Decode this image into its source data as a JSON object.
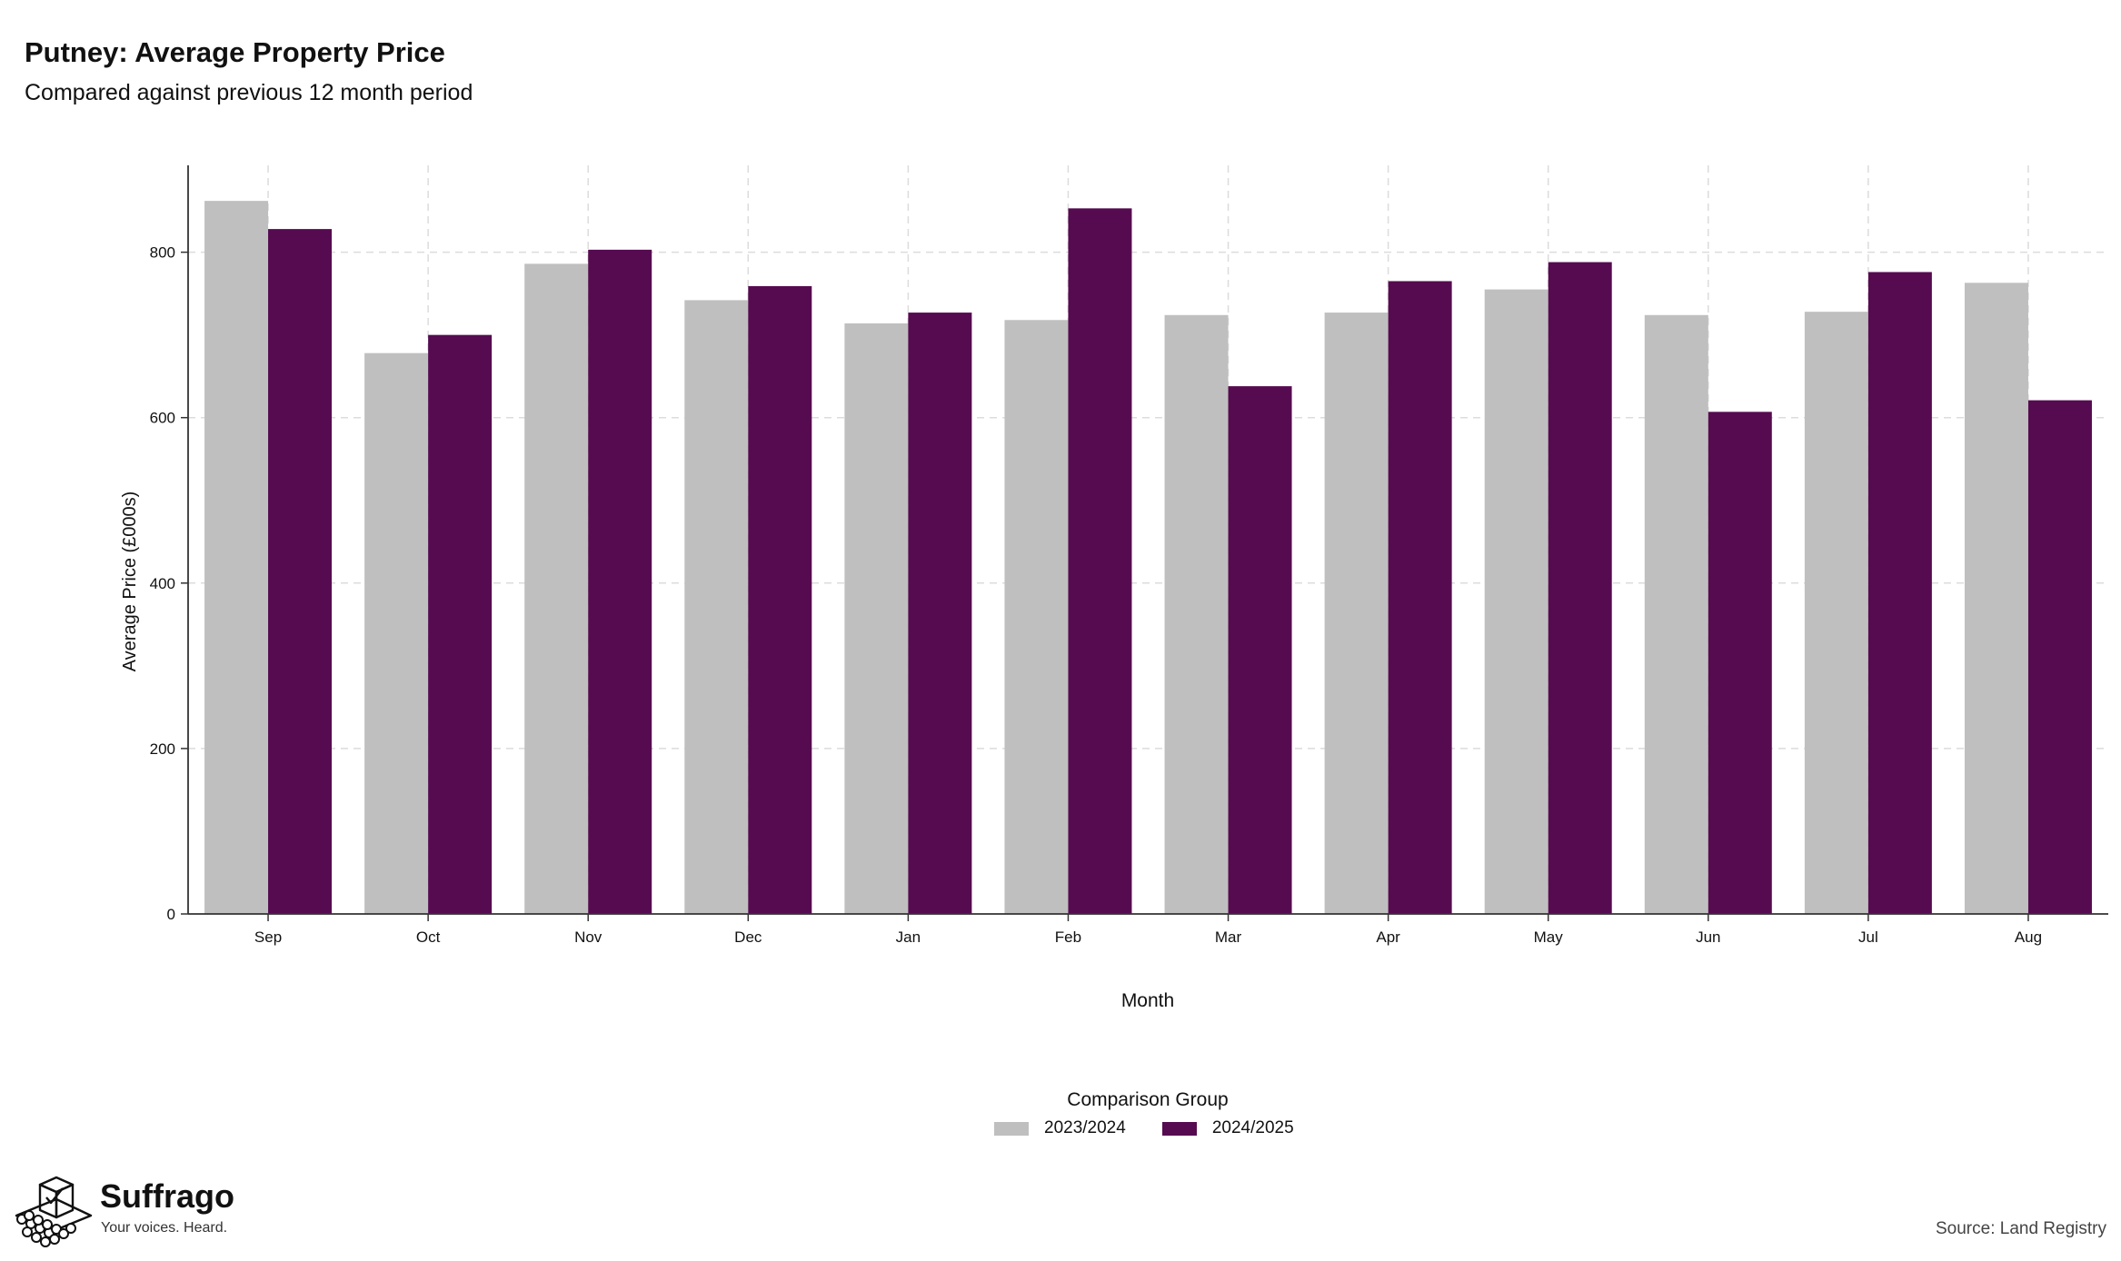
{
  "header": {
    "title": "Putney: Average Property Price",
    "subtitle": "Compared against previous 12 month period"
  },
  "chart_data": {
    "type": "bar",
    "title": "Putney: Average Property Price",
    "subtitle": "Compared against previous 12 month period",
    "xlabel": "Month",
    "ylabel": "Average Price (£000s)",
    "ylim": [
      0,
      905
    ],
    "yticks": [
      0,
      200,
      400,
      600,
      800
    ],
    "grid": true,
    "legend_title": "Comparison Group",
    "legend_position": "bottom",
    "categories": [
      "Sep",
      "Oct",
      "Nov",
      "Dec",
      "Jan",
      "Feb",
      "Mar",
      "Apr",
      "May",
      "Jun",
      "Jul",
      "Aug"
    ],
    "series": [
      {
        "name": "2023/2024",
        "color": "#bfbfbf",
        "values": [
          862,
          678,
          786,
          742,
          714,
          718,
          724,
          727,
          755,
          724,
          728,
          763
        ]
      },
      {
        "name": "2024/2025",
        "color": "#560b50",
        "values": [
          828,
          700,
          803,
          759,
          727,
          853,
          638,
          765,
          788,
          607,
          776,
          621
        ]
      }
    ]
  },
  "footer": {
    "brand_name": "Suffrago",
    "brand_tagline": "Your voices. Heard.",
    "source": "Source: Land Registry"
  }
}
